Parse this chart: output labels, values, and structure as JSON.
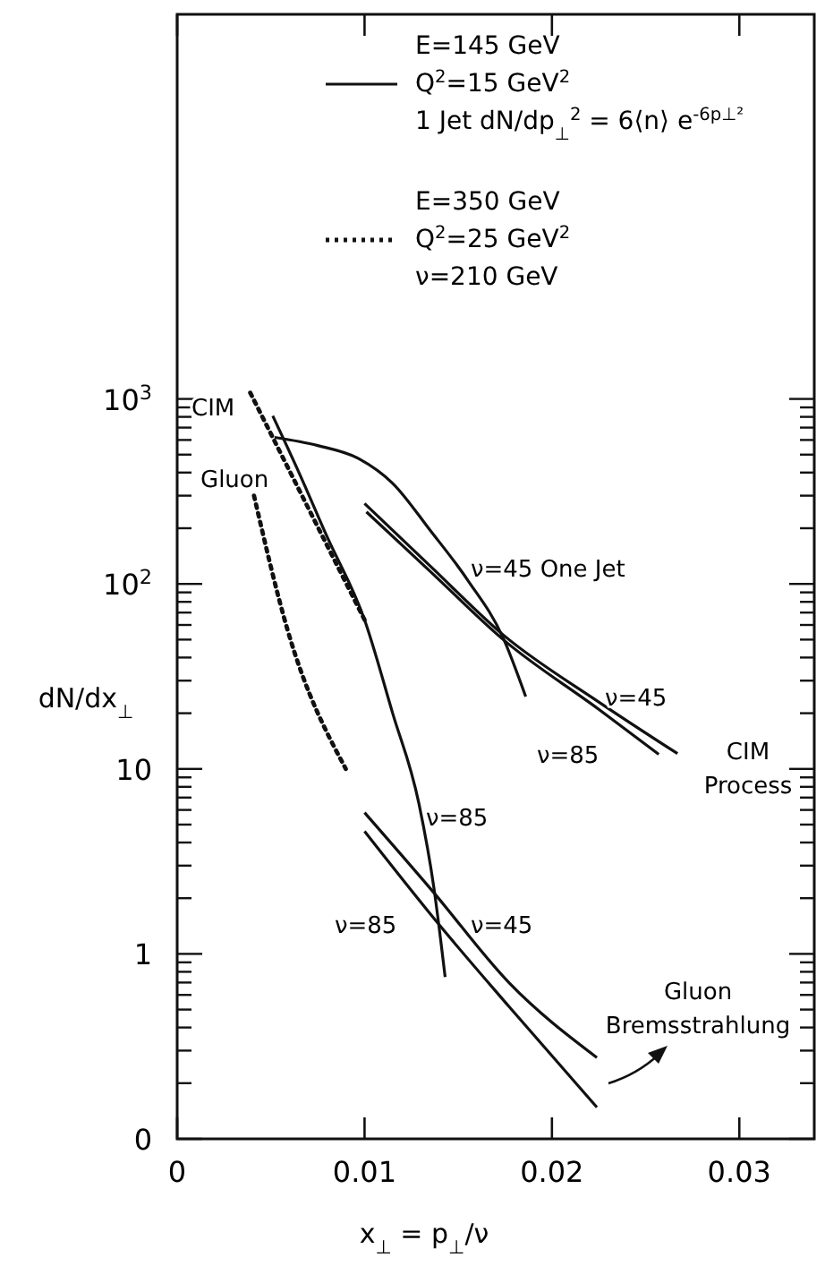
{
  "chart_data": {
    "type": "line",
    "xlabel": "x$_{⊥}$ = p$_{⊥}$/ν",
    "ylabel": "dN/dx$_{⊥}$",
    "log": "y",
    "grid": false,
    "legend": "top",
    "marker": "none",
    "xlim": [
      0,
      0.034
    ],
    "ylim": [
      0.1,
      120000
    ],
    "xticks": [
      0,
      0.01,
      0.02,
      0.03
    ],
    "yticks": [
      {
        "value": 0.1,
        "label": "0"
      },
      {
        "value": 0.2,
        "label": null
      },
      {
        "value": 0.3,
        "label": null
      },
      {
        "value": 0.4,
        "label": null
      },
      {
        "value": 0.5,
        "label": null
      },
      {
        "value": 0.6,
        "label": null
      },
      {
        "value": 0.7,
        "label": null
      },
      {
        "value": 0.8,
        "label": null
      },
      {
        "value": 0.9,
        "label": null
      },
      1,
      {
        "value": 2,
        "label": null
      },
      {
        "value": 3,
        "label": null
      },
      {
        "value": 4,
        "label": null
      },
      {
        "value": 5,
        "label": null
      },
      {
        "value": 6,
        "label": null
      },
      {
        "value": 7,
        "label": null
      },
      {
        "value": 8,
        "label": null
      },
      {
        "value": 9,
        "label": null
      },
      10,
      {
        "value": 20,
        "label": null
      },
      {
        "value": 30,
        "label": null
      },
      {
        "value": 40,
        "label": null
      },
      {
        "value": 50,
        "label": null
      },
      {
        "value": 60,
        "label": null
      },
      {
        "value": 70,
        "label": null
      },
      {
        "value": 80,
        "label": null
      },
      {
        "value": 90,
        "label": null
      },
      {
        "value": 100,
        "label": "10$^{2}$"
      },
      {
        "value": 200,
        "label": null
      },
      {
        "value": 300,
        "label": null
      },
      {
        "value": 400,
        "label": null
      },
      {
        "value": 500,
        "label": null
      },
      {
        "value": 600,
        "label": null
      },
      {
        "value": 700,
        "label": null
      },
      {
        "value": 800,
        "label": null
      },
      {
        "value": 900,
        "label": null
      },
      {
        "value": 1000,
        "label": "10$^{3}$"
      }
    ],
    "series": [
      {
        "name": "E=145 GeV\nQ$^{2}$=15 GeV$^{2}$\n1 Jet dN/dp$_{⊥}$$^{2}$ = 6⟨n⟩ e$^{-6p⊥²}$",
        "color": "#111111",
        "line_style": "solid",
        "x": [
          0.0052,
          0.0075,
          0.0097,
          0.0115,
          0.0135,
          0.0155,
          0.0174,
          0.0186
        ],
        "values": [
          620,
          560,
          475,
          350,
          195,
          105,
          51,
          24.6
        ]
      },
      {
        "color": "#111111",
        "line_style": "solid",
        "x": [
          0.0051,
          0.0065,
          0.008,
          0.01,
          0.0115,
          0.0129,
          0.0137,
          0.0143
        ],
        "values": [
          810,
          400,
          180,
          64,
          20,
          6.5,
          2.28,
          0.75
        ]
      },
      {
        "color": "#111111",
        "line_style": "solid",
        "x": [
          0.01,
          0.0135,
          0.0174,
          0.0225,
          0.0267
        ],
        "values": [
          272,
          125,
          53,
          23,
          12.1
        ]
      },
      {
        "color": "#111111",
        "line_style": "solid",
        "x": [
          0.0101,
          0.0135,
          0.0174,
          0.0225,
          0.0257
        ],
        "values": [
          245,
          117,
          50,
          21,
          12
        ]
      },
      {
        "color": "#111111",
        "line_style": "solid",
        "x": [
          0.01,
          0.0136,
          0.0177,
          0.0224
        ],
        "values": [
          5.8,
          2.2,
          0.7,
          0.275
        ]
      },
      {
        "color": "#111111",
        "line_style": "solid",
        "x": [
          0.01,
          0.014,
          0.0177,
          0.0224
        ],
        "values": [
          4.6,
          1.43,
          0.52,
          0.148
        ]
      },
      {
        "name": "E=350 GeV\nQ$^{2}$=25 GeV$^{2}$\nν=210 GeV",
        "color": "#111111",
        "line_style": "dotted",
        "x": [
          0.0039,
          0.0071,
          0.01
        ],
        "values": [
          1080,
          245,
          64
        ]
      },
      {
        "color": "#111111",
        "line_style": "dotted",
        "x": [
          0.0041,
          0.0059,
          0.009
        ],
        "values": [
          300,
          56,
          10
        ]
      }
    ],
    "annotations": [
      "CIM",
      "Gluon",
      "ν=45  One Jet",
      "ν=45",
      "ν=85",
      "CIM\nProcess",
      "ν=85",
      "ν=85",
      "ν=45",
      "Gluon\nBremsstrahlung"
    ]
  }
}
